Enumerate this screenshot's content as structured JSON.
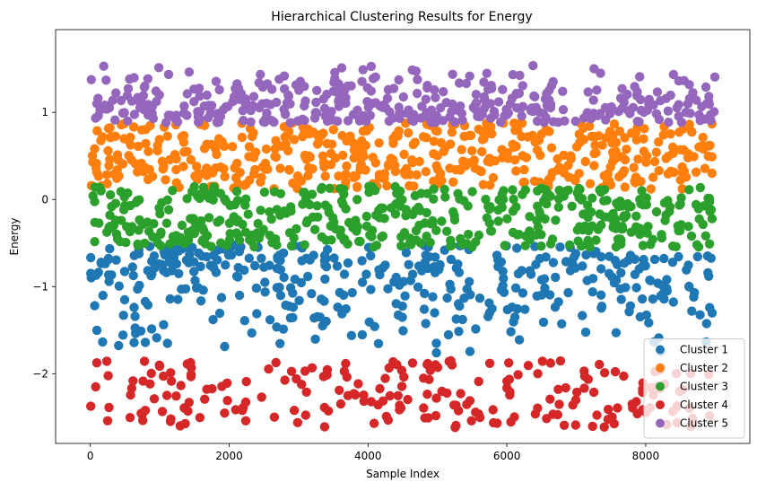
{
  "chart_data": {
    "type": "scatter",
    "title": "Hierarchical Clustering Results for Energy",
    "xlabel": "Sample Index",
    "ylabel": "Energy",
    "xlim": [
      -500,
      9500
    ],
    "ylim": [
      -2.8,
      1.95
    ],
    "x_range": [
      0,
      9000
    ],
    "x_ticks": [
      0,
      2000,
      4000,
      6000,
      8000
    ],
    "y_ticks": [
      1,
      0,
      -1,
      -2
    ],
    "y_tick_labels": [
      "1",
      "0",
      "−1",
      "−2"
    ],
    "legend_position": "lower right",
    "grid": false,
    "series": [
      {
        "name": "Cluster 1",
        "color": "#1f77b4",
        "y_range": [
          -1.85,
          -0.52
        ],
        "sample_count": 400,
        "bias": "upper"
      },
      {
        "name": "Cluster 2",
        "color": "#ff7f0e",
        "y_range": [
          0.12,
          0.88
        ],
        "sample_count": 480,
        "bias": "uniform"
      },
      {
        "name": "Cluster 3",
        "color": "#2ca02c",
        "y_range": [
          -0.55,
          0.15
        ],
        "sample_count": 460,
        "bias": "uniform"
      },
      {
        "name": "Cluster 4",
        "color": "#d62728",
        "y_range": [
          -2.62,
          -1.85
        ],
        "sample_count": 220,
        "bias": "uniform"
      },
      {
        "name": "Cluster 5",
        "color": "#9467bd",
        "y_range": [
          0.88,
          1.6
        ],
        "sample_count": 400,
        "bias": "lower"
      }
    ]
  }
}
